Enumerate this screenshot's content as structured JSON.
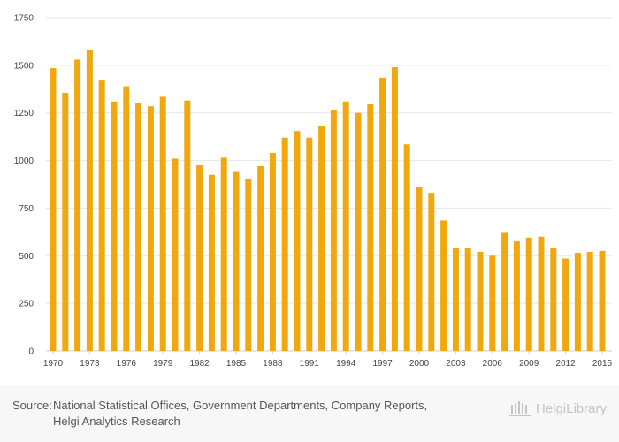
{
  "chart_data": {
    "type": "bar",
    "title": "",
    "xlabel": "",
    "ylabel": "",
    "ylim": [
      0,
      1750
    ],
    "yticks": [
      0,
      250,
      500,
      750,
      1000,
      1250,
      1500,
      1750
    ],
    "xtick_labels": [
      "1970",
      "1973",
      "1976",
      "1979",
      "1982",
      "1985",
      "1988",
      "1991",
      "1994",
      "1997",
      "2000",
      "2003",
      "2006",
      "2009",
      "2012",
      "2015"
    ],
    "bar_color": "#f0a80e",
    "grid_color": "#e6e6e6",
    "categories": [
      "1970",
      "1971",
      "1972",
      "1973",
      "1974",
      "1975",
      "1976",
      "1977",
      "1978",
      "1979",
      "1980",
      "1981",
      "1982",
      "1983",
      "1984",
      "1985",
      "1986",
      "1987",
      "1988",
      "1989",
      "1990",
      "1991",
      "1992",
      "1993",
      "1994",
      "1995",
      "1996",
      "1997",
      "1998",
      "1999",
      "2000",
      "2001",
      "2002",
      "2003",
      "2004",
      "2005",
      "2006",
      "2007",
      "2008",
      "2009",
      "2010",
      "2011",
      "2012",
      "2013",
      "2014",
      "2015"
    ],
    "values": [
      1485,
      1355,
      1530,
      1580,
      1420,
      1310,
      1390,
      1300,
      1285,
      1335,
      1010,
      1315,
      975,
      925,
      1015,
      940,
      905,
      970,
      1040,
      1120,
      1155,
      1120,
      1180,
      1265,
      1310,
      1250,
      1295,
      1435,
      1490,
      1085,
      860,
      830,
      685,
      540,
      540,
      520,
      500,
      620,
      575,
      595,
      600,
      540,
      485,
      515,
      520,
      525
    ]
  },
  "footer": {
    "source_label": "Source:",
    "source_line1": "National Statistical Offices, Government Departments, Company Reports,",
    "source_line2": "Helgi Analytics Research",
    "logo_text": "HelgiLibrary"
  }
}
